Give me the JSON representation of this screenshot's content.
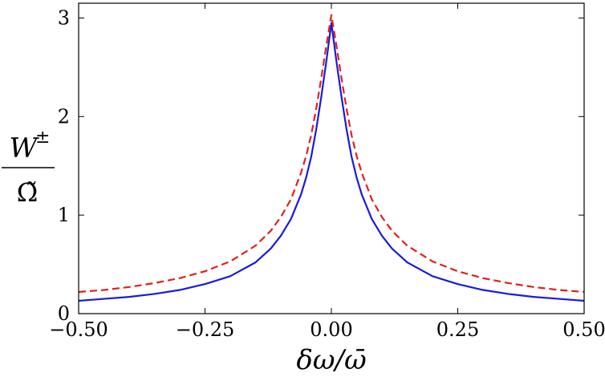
{
  "chart_data": {
    "type": "line",
    "title": "",
    "xlabel": "δω/ω̄",
    "ylabel": {
      "numerator": "W",
      "superscript": "±",
      "denominator": "Ω̃"
    },
    "xlim": [
      -0.5,
      0.5
    ],
    "ylim": [
      0,
      3.15
    ],
    "x_ticks": [
      {
        "value": -0.5,
        "label": "−0.50"
      },
      {
        "value": -0.25,
        "label": "−0.25"
      },
      {
        "value": 0.0,
        "label": "0.00"
      },
      {
        "value": 0.25,
        "label": "0.25"
      },
      {
        "value": 0.5,
        "label": "0.50"
      }
    ],
    "y_ticks": [
      {
        "value": 0,
        "label": "0"
      },
      {
        "value": 1,
        "label": "1"
      },
      {
        "value": 2,
        "label": "2"
      },
      {
        "value": 3,
        "label": "3"
      }
    ],
    "grid": false,
    "legend": "none",
    "series": [
      {
        "color": "#1a1adb",
        "dash": "solid",
        "x": [
          -0.5,
          -0.45,
          -0.4,
          -0.35,
          -0.3,
          -0.25,
          -0.2,
          -0.15,
          -0.12,
          -0.1,
          -0.08,
          -0.06,
          -0.05,
          -0.04,
          -0.03,
          -0.02,
          -0.01,
          0.0,
          0.01,
          0.02,
          0.03,
          0.04,
          0.05,
          0.06,
          0.08,
          0.1,
          0.12,
          0.15,
          0.2,
          0.25,
          0.3,
          0.35,
          0.4,
          0.45,
          0.5
        ],
        "y": [
          0.13,
          0.15,
          0.17,
          0.2,
          0.24,
          0.3,
          0.38,
          0.52,
          0.66,
          0.79,
          0.96,
          1.21,
          1.38,
          1.59,
          1.87,
          2.2,
          2.56,
          2.95,
          2.56,
          2.2,
          1.87,
          1.59,
          1.38,
          1.21,
          0.96,
          0.79,
          0.66,
          0.52,
          0.38,
          0.3,
          0.24,
          0.2,
          0.17,
          0.15,
          0.13
        ]
      },
      {
        "color": "#e0201a",
        "dash": "dashed",
        "x": [
          -0.5,
          -0.45,
          -0.4,
          -0.35,
          -0.3,
          -0.25,
          -0.2,
          -0.15,
          -0.12,
          -0.1,
          -0.08,
          -0.06,
          -0.05,
          -0.04,
          -0.03,
          -0.02,
          -0.01,
          0.0,
          0.01,
          0.02,
          0.03,
          0.04,
          0.05,
          0.06,
          0.08,
          0.1,
          0.12,
          0.15,
          0.2,
          0.25,
          0.3,
          0.35,
          0.4,
          0.45,
          0.5
        ],
        "y": [
          0.22,
          0.24,
          0.27,
          0.31,
          0.36,
          0.43,
          0.53,
          0.69,
          0.84,
          0.98,
          1.16,
          1.43,
          1.6,
          1.81,
          2.08,
          2.39,
          2.72,
          3.03,
          2.72,
          2.39,
          2.08,
          1.81,
          1.6,
          1.43,
          1.16,
          0.98,
          0.84,
          0.69,
          0.53,
          0.43,
          0.36,
          0.31,
          0.27,
          0.24,
          0.22
        ]
      }
    ]
  }
}
